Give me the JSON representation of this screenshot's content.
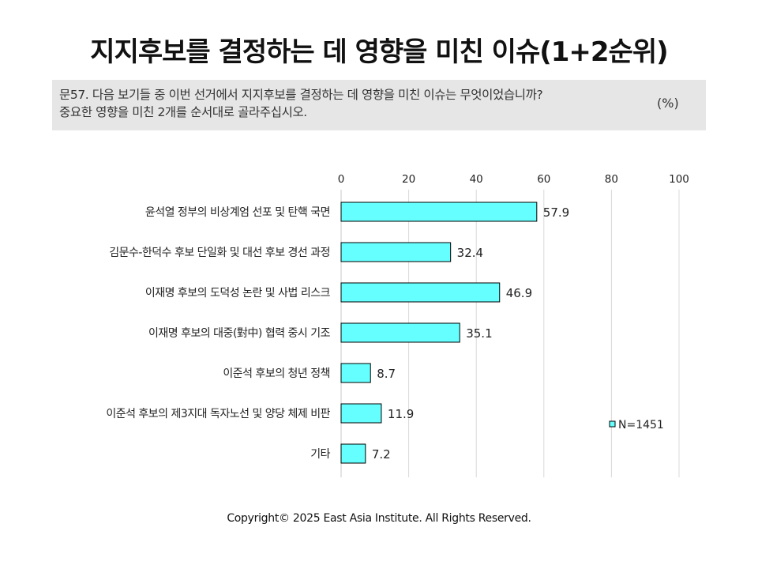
{
  "title": "지지후보를 결정하는 데 영향을 미친 이슈(1+2순위)",
  "question": {
    "line1": "문57. 다음 보기들 중 이번 선거에서 지지후보를 결정하는 데 영향을 미친 이슈는 무엇이었습니까?",
    "line2": "중요한 영향을 미친 2개를 순서대로 골라주십시오.",
    "unit": "(%)"
  },
  "chart_data": {
    "type": "bar",
    "orientation": "horizontal",
    "categories": [
      "윤석열 정부의 비상계엄 선포 및 탄핵 국면",
      "김문수-한덕수 후보 단일화 및 대선 후보 경선 과정",
      "이재명 후보의 도덕성 논란 및 사법 리스크",
      "이재명 후보의 대중(對中) 협력 중시 기조",
      "이준석 후보의 청년 정책",
      "이준석 후보의 제3지대 독자노선 및 양당 체제 비판",
      "기타"
    ],
    "series": [
      {
        "name": "N=1451",
        "values": [
          57.9,
          32.4,
          46.9,
          35.1,
          8.7,
          11.9,
          7.2
        ]
      }
    ],
    "xlim": [
      0,
      100
    ],
    "ticks": [
      "0",
      "20",
      "40",
      "60",
      "80",
      "100"
    ],
    "grid": true,
    "legend_position": "bottom-right",
    "colors": {
      "bar": "#66ffff",
      "bar_border": "#000000",
      "grid": "#d9d9d9"
    }
  },
  "footer": "Copyright© 2025 East Asia Institute. All Rights Reserved."
}
